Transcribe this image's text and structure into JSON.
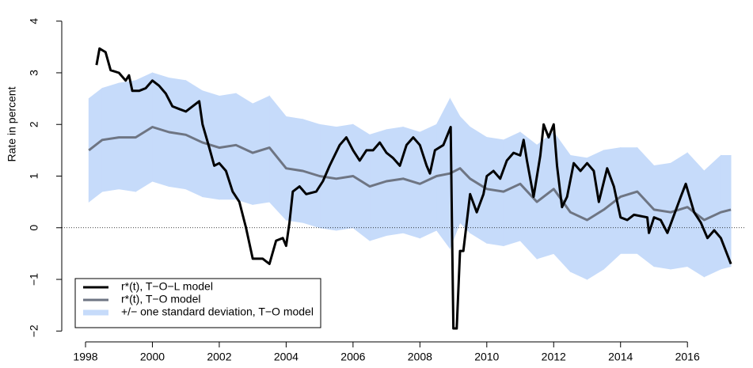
{
  "chart_data": {
    "type": "line",
    "y_label": "Rate in percent",
    "xlim": [
      1997.29,
      2017.7
    ],
    "ylim": [
      -2.21,
      4.21
    ],
    "xticks": [
      1998,
      2000,
      2002,
      2004,
      2006,
      2008,
      2010,
      2012,
      2014,
      2016
    ],
    "yticks": [
      {
        "value": -2,
        "label": "−2"
      },
      {
        "value": -1,
        "label": "−1"
      },
      0,
      1,
      2,
      3,
      4
    ],
    "reference_line": 0,
    "legend": "bottom-left",
    "series": [
      {
        "name": "r*(t), T−O−L model",
        "color": "#000000",
        "x": [
          1998.33,
          1998.42,
          1998.6,
          1998.75,
          1999.0,
          1999.2,
          1999.3,
          1999.4,
          1999.6,
          1999.8,
          2000.0,
          2000.2,
          2000.4,
          2000.6,
          2000.8,
          2001.0,
          2001.2,
          2001.4,
          2001.5,
          2001.7,
          2001.85,
          2002.0,
          2002.2,
          2002.4,
          2002.6,
          2002.8,
          2003.0,
          2003.3,
          2003.5,
          2003.7,
          2003.9,
          2004.0,
          2004.1,
          2004.2,
          2004.4,
          2004.6,
          2004.9,
          2005.1,
          2005.3,
          2005.6,
          2005.8,
          2006.0,
          2006.2,
          2006.4,
          2006.6,
          2006.8,
          2007.0,
          2007.2,
          2007.4,
          2007.6,
          2007.8,
          2008.0,
          2008.2,
          2008.3,
          2008.45,
          2008.7,
          2008.92,
          2008.97,
          2009.0,
          2009.1,
          2009.2,
          2009.3,
          2009.5,
          2009.7,
          2009.9,
          2010.0,
          2010.2,
          2010.4,
          2010.6,
          2010.8,
          2011.0,
          2011.1,
          2011.2,
          2011.4,
          2011.6,
          2011.7,
          2011.85,
          2012.0,
          2012.1,
          2012.25,
          2012.4,
          2012.6,
          2012.8,
          2013.0,
          2013.2,
          2013.35,
          2013.6,
          2013.8,
          2014.0,
          2014.2,
          2014.4,
          2014.8,
          2014.85,
          2015.0,
          2015.2,
          2015.4,
          2015.8,
          2015.95,
          2016.2,
          2016.4,
          2016.6,
          2016.8,
          2017.0,
          2017.3
        ],
        "values": [
          3.15,
          3.47,
          3.4,
          3.05,
          3.0,
          2.85,
          2.95,
          2.65,
          2.65,
          2.7,
          2.85,
          2.75,
          2.6,
          2.35,
          2.3,
          2.25,
          2.35,
          2.45,
          2.0,
          1.55,
          1.2,
          1.25,
          1.1,
          0.7,
          0.5,
          0.0,
          -0.6,
          -0.6,
          -0.7,
          -0.25,
          -0.2,
          -0.35,
          0.1,
          0.7,
          0.8,
          0.65,
          0.7,
          0.9,
          1.2,
          1.6,
          1.75,
          1.5,
          1.3,
          1.5,
          1.5,
          1.65,
          1.45,
          1.35,
          1.2,
          1.6,
          1.75,
          1.6,
          1.2,
          1.05,
          1.5,
          1.6,
          1.95,
          -0.5,
          -1.95,
          -1.95,
          -0.45,
          -0.45,
          0.65,
          0.3,
          0.65,
          1.0,
          1.1,
          0.95,
          1.3,
          1.45,
          1.4,
          1.7,
          1.3,
          0.6,
          1.4,
          2.0,
          1.75,
          2.0,
          1.2,
          0.4,
          0.6,
          1.25,
          1.1,
          1.25,
          1.1,
          0.5,
          1.15,
          0.8,
          0.2,
          0.15,
          0.25,
          0.2,
          -0.1,
          0.2,
          0.15,
          -0.1,
          0.6,
          0.85,
          0.3,
          0.1,
          -0.2,
          -0.05,
          -0.2,
          -0.7
        ]
      },
      {
        "name": "r*(t), T−O model",
        "color": "#6e7583",
        "x": [
          1998.1,
          1998.5,
          1999,
          1999.5,
          2000,
          2000.5,
          2001,
          2001.5,
          2002,
          2002.5,
          2003,
          2003.5,
          2004,
          2004.5,
          2005,
          2005.5,
          2006,
          2006.5,
          2007,
          2007.5,
          2008,
          2008.5,
          2008.9,
          2009.2,
          2009.5,
          2010,
          2010.5,
          2011,
          2011.5,
          2012,
          2012.5,
          2013,
          2013.5,
          2014,
          2014.5,
          2015,
          2015.5,
          2016,
          2016.5,
          2017,
          2017.3
        ],
        "values": [
          1.5,
          1.7,
          1.75,
          1.75,
          1.95,
          1.85,
          1.8,
          1.65,
          1.55,
          1.6,
          1.45,
          1.55,
          1.15,
          1.1,
          1.0,
          0.95,
          1.0,
          0.8,
          0.9,
          0.95,
          0.85,
          1.0,
          1.05,
          1.15,
          0.95,
          0.75,
          0.7,
          0.85,
          0.5,
          0.75,
          0.3,
          0.15,
          0.35,
          0.6,
          0.7,
          0.35,
          0.3,
          0.4,
          0.15,
          0.3,
          0.35
        ]
      },
      {
        "name": "+/− one standard deviation, T−O model",
        "color": "#c6dbfa",
        "x": [
          1998.1,
          1998.5,
          1999,
          1999.5,
          2000,
          2000.5,
          2001,
          2001.5,
          2002,
          2002.5,
          2003,
          2003.5,
          2004,
          2004.5,
          2005,
          2005.5,
          2006,
          2006.5,
          2007,
          2007.5,
          2008,
          2008.5,
          2008.9,
          2009.2,
          2009.5,
          2010,
          2010.5,
          2011,
          2011.5,
          2012,
          2012.5,
          2013,
          2013.5,
          2014,
          2014.5,
          2015,
          2015.5,
          2016,
          2016.5,
          2017,
          2017.3
        ],
        "upper": [
          2.5,
          2.7,
          2.8,
          2.85,
          3.0,
          2.9,
          2.85,
          2.65,
          2.55,
          2.6,
          2.4,
          2.55,
          2.15,
          2.1,
          2.0,
          1.95,
          2.0,
          1.8,
          1.9,
          1.95,
          1.85,
          2.0,
          2.5,
          2.15,
          1.95,
          1.75,
          1.7,
          1.85,
          1.6,
          1.85,
          1.4,
          1.35,
          1.5,
          1.55,
          1.55,
          1.2,
          1.25,
          1.45,
          1.1,
          1.4,
          1.4
        ],
        "lower": [
          0.5,
          0.7,
          0.75,
          0.7,
          0.9,
          0.8,
          0.75,
          0.6,
          0.55,
          0.55,
          0.45,
          0.5,
          0.15,
          0.1,
          0.0,
          -0.05,
          0.0,
          -0.25,
          -0.15,
          -0.1,
          -0.2,
          -0.05,
          -0.4,
          0.1,
          -0.1,
          -0.3,
          -0.35,
          -0.25,
          -0.6,
          -0.5,
          -0.85,
          -1.0,
          -0.8,
          -0.5,
          -0.5,
          -0.75,
          -0.8,
          -0.75,
          -0.95,
          -0.8,
          -0.75
        ]
      }
    ]
  }
}
